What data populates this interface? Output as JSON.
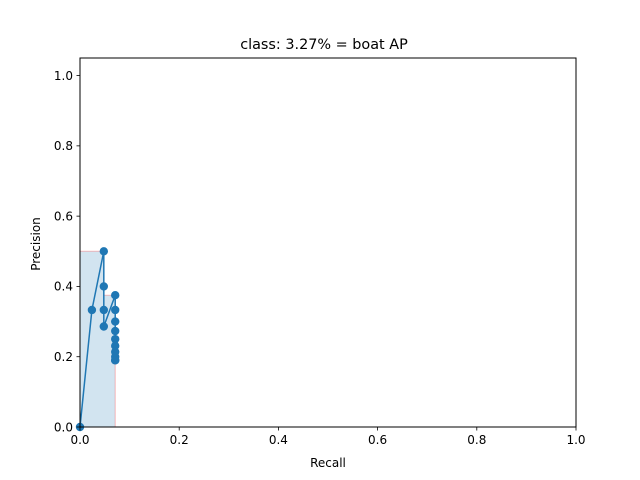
{
  "chart_data": {
    "type": "line",
    "title": "class: 3.27% = boat AP",
    "xlabel": "Recall",
    "ylabel": "Precision",
    "xlim": [
      0.0,
      1.0
    ],
    "ylim": [
      0.0,
      1.05
    ],
    "xticks": [
      0.0,
      0.2,
      0.4,
      0.6,
      0.8,
      1.0
    ],
    "yticks": [
      0.0,
      0.2,
      0.4,
      0.6,
      0.8,
      1.0
    ],
    "xtick_labels": [
      "0.0",
      "0.2",
      "0.4",
      "0.6",
      "0.8",
      "1.0"
    ],
    "ytick_labels": [
      "0.0",
      "0.2",
      "0.4",
      "0.6",
      "0.8",
      "1.0"
    ],
    "grid": false,
    "series": [
      {
        "kind": "line-with-markers",
        "color": "#1f77b4",
        "x": [
          0.0,
          0.024,
          0.048,
          0.048,
          0.048,
          0.048,
          0.071,
          0.071,
          0.071,
          0.071,
          0.071,
          0.071,
          0.071,
          0.071,
          0.071,
          0.071
        ],
        "y": [
          0.0,
          0.333,
          0.5,
          0.4,
          0.333,
          0.286,
          0.375,
          0.333,
          0.3,
          0.273,
          0.25,
          0.231,
          0.214,
          0.2,
          0.19,
          0.19
        ]
      }
    ],
    "interpolated_area": {
      "fill_color": "#1f77b4",
      "edge_color": "#ff0000",
      "x": [
        0.0,
        0.048,
        0.048,
        0.071
      ],
      "y": [
        0.5,
        0.5,
        0.375,
        0.375
      ]
    }
  }
}
